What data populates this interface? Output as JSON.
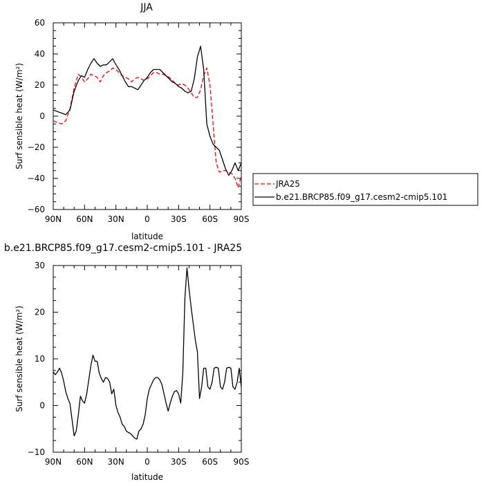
{
  "chart_data": [
    {
      "type": "line",
      "title": "JJA",
      "xlabel": "latitude",
      "ylabel": "Surf sensible heat (W/m²)",
      "xlim": [
        90,
        -90
      ],
      "ylim": [
        -60,
        60
      ],
      "x_ticks": [
        "90N",
        "60N",
        "30N",
        "0",
        "30S",
        "60S",
        "90S"
      ],
      "x_tick_values": [
        90,
        60,
        30,
        0,
        -30,
        -60,
        -90
      ],
      "y_ticks": [
        -60,
        -40,
        -20,
        0,
        20,
        40,
        60
      ],
      "legend_position": "right",
      "series": [
        {
          "name": "JRA25",
          "color": "#ff0000",
          "style": "dashed",
          "x": [
            90,
            86,
            82,
            78,
            74,
            70,
            66,
            63,
            60,
            57,
            54,
            51,
            48,
            45,
            42,
            39,
            36,
            33,
            30,
            27,
            24,
            21,
            18,
            15,
            12,
            9,
            6,
            3,
            0,
            -3,
            -6,
            -9,
            -12,
            -15,
            -18,
            -21,
            -24,
            -27,
            -30,
            -33,
            -36,
            -39,
            -42,
            -45,
            -48,
            -51,
            -54,
            -57,
            -60,
            -63,
            -66,
            -69,
            -72,
            -75,
            -78,
            -81,
            -84,
            -87,
            -90
          ],
          "y": [
            -3,
            -4,
            -5,
            -3,
            5,
            18,
            27,
            25,
            22,
            24,
            27,
            26,
            25,
            22,
            26,
            28,
            29,
            31,
            30,
            28,
            26,
            25,
            24,
            22,
            24,
            25,
            24,
            23,
            24,
            26,
            28,
            28,
            27,
            27,
            26,
            25,
            23,
            21,
            20,
            21,
            20,
            18,
            15,
            12,
            12,
            17,
            26,
            31,
            20,
            -5,
            -30,
            -36,
            -35,
            -35,
            -36,
            -37,
            -40,
            -46,
            -38
          ]
        },
        {
          "name": "b.e21.BRCP85.f09_g17.cesm2-cmip5.101",
          "color": "#000000",
          "style": "solid",
          "x": [
            90,
            86,
            82,
            78,
            74,
            70,
            66,
            63,
            60,
            57,
            54,
            51,
            48,
            45,
            42,
            39,
            36,
            33,
            30,
            27,
            24,
            21,
            18,
            15,
            12,
            9,
            6,
            3,
            0,
            -3,
            -6,
            -9,
            -12,
            -15,
            -18,
            -21,
            -24,
            -27,
            -30,
            -33,
            -36,
            -39,
            -42,
            -45,
            -48,
            -51,
            -54,
            -57,
            -60,
            -63,
            -66,
            -69,
            -72,
            -75,
            -78,
            -81,
            -84,
            -87,
            -90
          ],
          "y": [
            4,
            3,
            2,
            1,
            4,
            16,
            23,
            26,
            25,
            30,
            34,
            37,
            34,
            32,
            33,
            33,
            35,
            37,
            33,
            30,
            26,
            22,
            19,
            19,
            18,
            17,
            20,
            23,
            25,
            28,
            30,
            30,
            30,
            28,
            26,
            24,
            22,
            21,
            19,
            18,
            16,
            15,
            16,
            24,
            38,
            45,
            30,
            -5,
            -13,
            -18,
            -20,
            -22,
            -28,
            -34,
            -38,
            -35,
            -30,
            -35,
            -30
          ]
        }
      ]
    },
    {
      "type": "line",
      "title": "b.e21.BRCP85.f09_g17.cesm2-cmip5.101 - JRA25",
      "xlabel": "latitude",
      "ylabel": "Surf sensible heat (W/m²)",
      "xlim": [
        90,
        -90
      ],
      "ylim": [
        -10,
        30
      ],
      "x_ticks": [
        "90N",
        "60N",
        "30N",
        "0",
        "30S",
        "60S",
        "90S"
      ],
      "x_tick_values": [
        90,
        60,
        30,
        0,
        -30,
        -60,
        -90
      ],
      "y_ticks": [
        -10,
        0,
        10,
        20,
        30
      ],
      "series": [
        {
          "color": "#000000",
          "style": "solid",
          "x": [
            90,
            88,
            86,
            84,
            82,
            80,
            78,
            76,
            74,
            72,
            70,
            68,
            66,
            64,
            62,
            60,
            58,
            56,
            54,
            52,
            50,
            48,
            46,
            44,
            42,
            40,
            38,
            36,
            34,
            32,
            30,
            28,
            26,
            24,
            22,
            20,
            18,
            16,
            14,
            12,
            10,
            8,
            6,
            4,
            2,
            0,
            -2,
            -4,
            -6,
            -8,
            -10,
            -12,
            -14,
            -16,
            -18,
            -20,
            -22,
            -24,
            -26,
            -28,
            -30,
            -32,
            -34,
            -36,
            -38,
            -40,
            -42,
            -44,
            -46,
            -48,
            -50,
            -52,
            -54,
            -56,
            -58,
            -60,
            -62,
            -64,
            -66,
            -68,
            -70,
            -72,
            -74,
            -76,
            -78,
            -80,
            -82,
            -84,
            -86,
            -88,
            -90
          ],
          "y": [
            7.2,
            6.6,
            7.2,
            8.0,
            7.0,
            5.2,
            3.0,
            1.5,
            0.4,
            -3.0,
            -6.5,
            -5.5,
            -2.0,
            2.0,
            1.0,
            0.5,
            2.5,
            5.5,
            8.5,
            10.8,
            9.5,
            9.5,
            7.0,
            5.8,
            5.0,
            6.0,
            5.8,
            5.0,
            2.5,
            3.5,
            0.0,
            -1.5,
            -2.5,
            -4.0,
            -4.5,
            -5.5,
            -5.8,
            -6.0,
            -6.5,
            -7.0,
            -7.2,
            -5.5,
            -5.0,
            -4.0,
            -2.0,
            1.5,
            3.5,
            4.5,
            5.5,
            6.0,
            6.0,
            5.5,
            4.5,
            2.5,
            0.5,
            -1.2,
            0.5,
            2.0,
            3.0,
            3.2,
            2.5,
            0.5,
            7.0,
            23.0,
            29.5,
            25.0,
            21.0,
            17.5,
            14.0,
            11.5,
            1.5,
            4.0,
            8.0,
            8.0,
            4.0,
            3.5,
            5.0,
            8.0,
            8.2,
            8.0,
            4.0,
            3.5,
            5.0,
            8.0,
            8.2,
            8.0,
            4.0,
            3.5,
            5.0,
            8.0,
            4.0
          ]
        }
      ]
    }
  ]
}
